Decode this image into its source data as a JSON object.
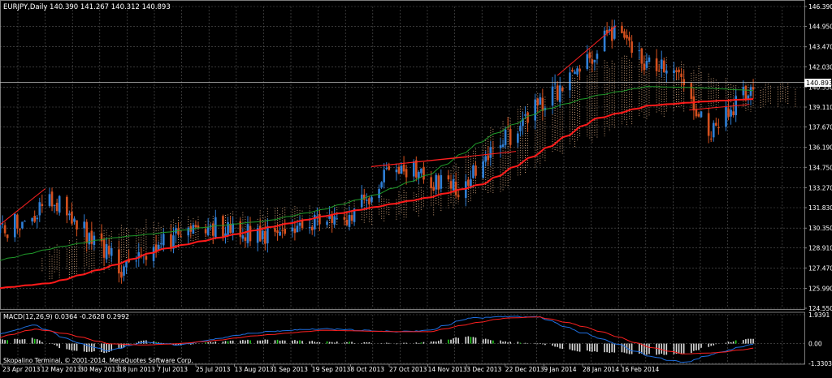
{
  "colors": {
    "background": "#000000",
    "grid": "#5a5a5a",
    "axis_text": "#ffffff",
    "bull_candle": "#2f7fd6",
    "bear_candle": "#d4501e",
    "ma_slow": "#ff1a1a",
    "ma_fast": "#1f9a2a",
    "cloud": "#e8b58a",
    "macd_main": "#1f6fe0",
    "macd_signal": "#ff2020",
    "macd_hist": "#dcdcdc",
    "macd_hist_highlight": "#24d11e",
    "price_line": "#bfbfbf"
  },
  "chart_data": [
    {
      "type": "candlestick",
      "title": "EURJPY,Daily  140.390 141.267 140.312 140.893",
      "current_price_label": "140.893",
      "current_price": 140.893,
      "y_ticks": [
        "146.390",
        "144.950",
        "143.470",
        "142.030",
        "140.550",
        "139.110",
        "137.670",
        "136.190",
        "134.750",
        "133.270",
        "131.830",
        "130.350",
        "128.910",
        "127.470",
        "125.990",
        "124.550"
      ],
      "y_tick_values": [
        146.39,
        144.95,
        143.47,
        142.03,
        140.55,
        139.11,
        137.67,
        136.19,
        134.75,
        133.27,
        131.83,
        130.35,
        128.91,
        127.47,
        125.99,
        124.55
      ],
      "ylim": [
        124.55,
        146.39
      ],
      "x_labels": [
        "23 Apr 2013",
        "12 May 2013",
        "30 May 2013",
        "18 Jun 2013",
        "7 Jul 2013",
        "25 Jul 2013",
        "13 Aug 2013",
        "1 Sep 2013",
        "19 Sep 2013",
        "8 Oct 2013",
        "27 Oct 2013",
        "14 Nov 2013",
        "3 Dec 2013",
        "22 Dec 2013",
        "9 Jan 2014",
        "28 Jan 2014",
        "16 Feb 2014"
      ],
      "anchor_dates": [
        "2013-04-23",
        "2013-05-15",
        "2013-05-23",
        "2013-06-13",
        "2013-07-08",
        "2013-08-08",
        "2013-09-11",
        "2013-09-30",
        "2013-10-25",
        "2013-11-07",
        "2013-11-28",
        "2013-12-11",
        "2013-12-27",
        "2014-01-08",
        "2014-01-23",
        "2014-02-04",
        "2014-02-14",
        "2014-02-21"
      ],
      "anchor_closes": [
        130.0,
        132.3,
        130.8,
        127.2,
        130.6,
        130.0,
        131.4,
        134.9,
        133.1,
        135.6,
        139.6,
        141.3,
        144.9,
        142.2,
        141.4,
        137.0,
        139.5,
        140.9
      ],
      "ma_slow_anchors": [
        126.0,
        126.4,
        127.5,
        128.8,
        129.6,
        130.4,
        131.2,
        131.9,
        132.6,
        133.6,
        135.8,
        138.2,
        139.2,
        139.5,
        139.7
      ],
      "ma_fast_anchors": [
        128.0,
        128.9,
        129.6,
        130.0,
        130.5,
        130.9,
        131.7,
        132.8,
        134.3,
        136.8,
        138.8,
        139.9,
        140.6,
        140.5,
        140.3
      ],
      "cloud_top_anchors": [
        128.5,
        129.6,
        130.6,
        130.9,
        131.3,
        131.6,
        131.9,
        132.5,
        134.0,
        137.5,
        140.2,
        142.0,
        142.8,
        141.8,
        140.6,
        140.4
      ],
      "cloud_bottom_anchors": [
        126.9,
        127.2,
        128.5,
        129.3,
        129.9,
        130.3,
        130.7,
        131.1,
        131.8,
        133.0,
        135.4,
        137.0,
        138.5,
        139.0,
        139.1,
        139.4
      ],
      "trendlines": [
        {
          "from": [
            0.0,
            130.6
          ],
          "to": [
            0.06,
            133.2
          ]
        },
        {
          "from": [
            0.493,
            134.8
          ],
          "to": [
            0.685,
            135.9
          ]
        },
        {
          "from": [
            0.493,
            134.8
          ],
          "to": [
            0.62,
            135.5
          ]
        },
        {
          "from": [
            0.74,
            141.4
          ],
          "to": [
            0.818,
            145.0
          ]
        },
        {
          "from": [
            0.915,
            138.9
          ],
          "to": [
            0.995,
            139.3
          ]
        }
      ]
    },
    {
      "type": "macd",
      "title": "MACD(12,26,9) 0.0364 -0.2628 0.2992",
      "y_ticks": [
        "1.9391",
        "0.00",
        "-1.3303"
      ],
      "y_tick_values": [
        1.9391,
        0,
        -1.3303
      ],
      "ylim": [
        -1.3303,
        1.9391
      ],
      "main_anchors": [
        0.6,
        1.3,
        0.2,
        -0.5,
        0.1,
        -0.1,
        0.3,
        0.7,
        0.9,
        1.0,
        0.9,
        0.8,
        0.9,
        1.7,
        1.8,
        1.8,
        0.9,
        0.1,
        -0.8,
        -1.3,
        -0.6,
        0.0
      ],
      "signal_anchors": [
        0.4,
        1.0,
        0.6,
        0.0,
        -0.1,
        0.0,
        0.2,
        0.5,
        0.7,
        0.9,
        0.85,
        0.8,
        0.8,
        1.3,
        1.7,
        1.8,
        1.3,
        0.6,
        -0.2,
        -0.7,
        -0.6,
        -0.3
      ],
      "copyright": "Skopalino Terminal, © 2001-2014, MetaQuotes Software Corp."
    }
  ]
}
